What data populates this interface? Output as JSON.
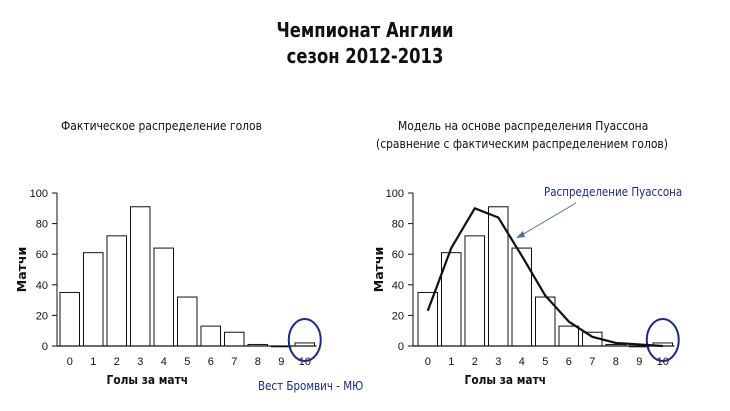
{
  "page": {
    "title_line1": "Чемпионат Англии",
    "title_line2": "сезон 2012-2013"
  },
  "colors": {
    "highlight": "#1a2a86",
    "bar_fill": "#ffffff",
    "bar_stroke": "#111111"
  },
  "chart_data": [
    {
      "type": "bar",
      "title": "Фактическое распределение голов",
      "xlabel": "Голы за матч",
      "ylabel": "Матчи",
      "categories": [
        "0",
        "1",
        "2",
        "3",
        "4",
        "5",
        "6",
        "7",
        "8",
        "9",
        "10"
      ],
      "values": [
        35,
        61,
        72,
        91,
        64,
        32,
        13,
        9,
        1,
        0,
        2
      ],
      "ylim": [
        0,
        100
      ],
      "yticks": [
        0,
        20,
        40,
        60,
        80,
        100
      ],
      "annotation": "Вест Бромвич - МЮ"
    },
    {
      "type": "bar",
      "title_line1": "Модель на основе распределения Пуассона",
      "title_line2": "(сравнение с фактическим распределением голов)",
      "xlabel": "Голы за матч",
      "ylabel": "Матчи",
      "categories": [
        "0",
        "1",
        "2",
        "3",
        "4",
        "5",
        "6",
        "7",
        "8",
        "9",
        "10"
      ],
      "values": [
        35,
        61,
        72,
        91,
        64,
        32,
        13,
        9,
        1,
        0,
        2
      ],
      "ylim": [
        0,
        100
      ],
      "yticks": [
        0,
        20,
        40,
        60,
        80,
        100
      ],
      "series": [
        {
          "name": "Распределение Пуассона",
          "type": "line",
          "values": [
            23,
            64,
            90,
            84,
            59,
            33,
            16,
            6,
            2,
            1,
            0
          ]
        }
      ],
      "annotation": "Распределение Пуассона"
    }
  ]
}
